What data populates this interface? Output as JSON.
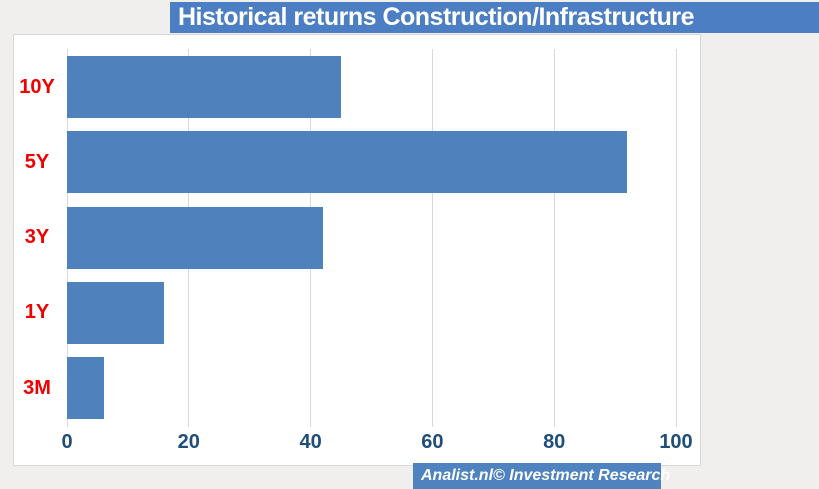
{
  "title": "Historical returns Construction/Infrastructure",
  "watermark": "Analist.nl© Investment Research",
  "chart_data": {
    "type": "bar",
    "orientation": "horizontal",
    "title": "Historical returns Construction/Infrastructure",
    "categories": [
      "10Y",
      "5Y",
      "3Y",
      "1Y",
      "3M"
    ],
    "values": [
      45,
      92,
      42,
      16,
      6
    ],
    "xlabel": "",
    "ylabel": "",
    "xlim": [
      0,
      100
    ],
    "xticks": [
      0,
      20,
      40,
      60,
      80,
      100
    ],
    "grid": true,
    "legend": false
  },
  "colors": {
    "bar": "#4f81bd",
    "title_banner": "#4b7ec2",
    "watermark_banner": "#4f83bf",
    "category_label": "#f00000",
    "axis_label": "#1f4e7b",
    "gridline": "#d9d9d9",
    "background": "#f0efee",
    "plot_background": "#ffffff"
  }
}
